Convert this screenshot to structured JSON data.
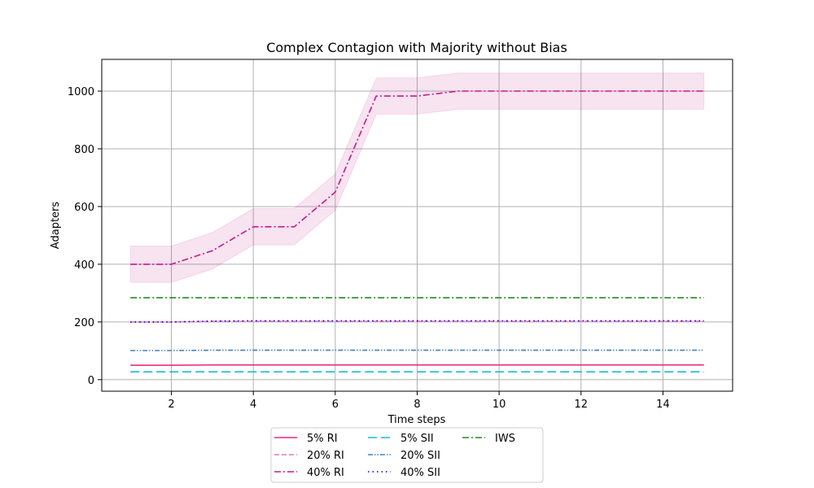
{
  "chart_data": {
    "type": "line",
    "title": "Complex Contagion with Majority without Bias",
    "xlabel": "Time steps",
    "ylabel": "Adapters",
    "xlim": [
      0.3,
      15.7
    ],
    "ylim": [
      -40,
      1110
    ],
    "xticks": [
      2,
      4,
      6,
      8,
      10,
      12,
      14
    ],
    "yticks": [
      0,
      200,
      400,
      600,
      800,
      1000
    ],
    "grid": true,
    "legend_position": "below plot, centered, 3 columns",
    "x": [
      1,
      2,
      3,
      4,
      5,
      6,
      7,
      8,
      9,
      10,
      11,
      12,
      13,
      14,
      15
    ],
    "series": [
      {
        "name": "5% RI",
        "color": "#e7298a",
        "dash": "solid",
        "values": [
          50,
          50,
          51,
          51,
          51,
          51,
          51,
          51,
          51,
          51,
          51,
          51,
          51,
          51,
          51
        ]
      },
      {
        "name": "20% RI",
        "color": "#e377c2",
        "dash": "dashed",
        "values": [
          200,
          200,
          202,
          202,
          202,
          202,
          202,
          202,
          202,
          202,
          202,
          202,
          202,
          202,
          202
        ]
      },
      {
        "name": "40% RI",
        "color": "#c51b8a",
        "dash": "dashdot",
        "values": [
          400,
          400,
          447,
          530,
          530,
          650,
          983,
          983,
          1000,
          1000,
          1000,
          1000,
          1000,
          1000,
          1000
        ],
        "band_lower": [
          337,
          337,
          383,
          467,
          467,
          587,
          920,
          920,
          937,
          937,
          937,
          937,
          937,
          937,
          937
        ],
        "band_upper": [
          463,
          463,
          510,
          593,
          593,
          713,
          1046,
          1046,
          1063,
          1063,
          1063,
          1063,
          1063,
          1063,
          1063
        ],
        "band_color": "#c51b8a"
      },
      {
        "name": "5% SII",
        "color": "#17becf",
        "dash": "longdash",
        "values": [
          27,
          27,
          27,
          27,
          27,
          27,
          27,
          27,
          27,
          27,
          27,
          27,
          27,
          27,
          27
        ]
      },
      {
        "name": "20% SII",
        "color": "#4682b4",
        "dash": "dashdotdot",
        "values": [
          101,
          101,
          102,
          102,
          102,
          102,
          102,
          102,
          102,
          102,
          102,
          102,
          102,
          102,
          102
        ]
      },
      {
        "name": "40% SII",
        "color": "#0000cd",
        "dash": "dotted",
        "values": [
          200,
          200,
          203,
          204,
          204,
          204,
          204,
          204,
          204,
          204,
          204,
          204,
          204,
          204,
          204
        ]
      },
      {
        "name": "IWS",
        "color": "#228b22",
        "dash": "dashdot",
        "values": [
          284,
          284,
          284,
          284,
          284,
          284,
          284,
          284,
          284,
          284,
          284,
          284,
          284,
          284,
          284
        ]
      }
    ]
  }
}
